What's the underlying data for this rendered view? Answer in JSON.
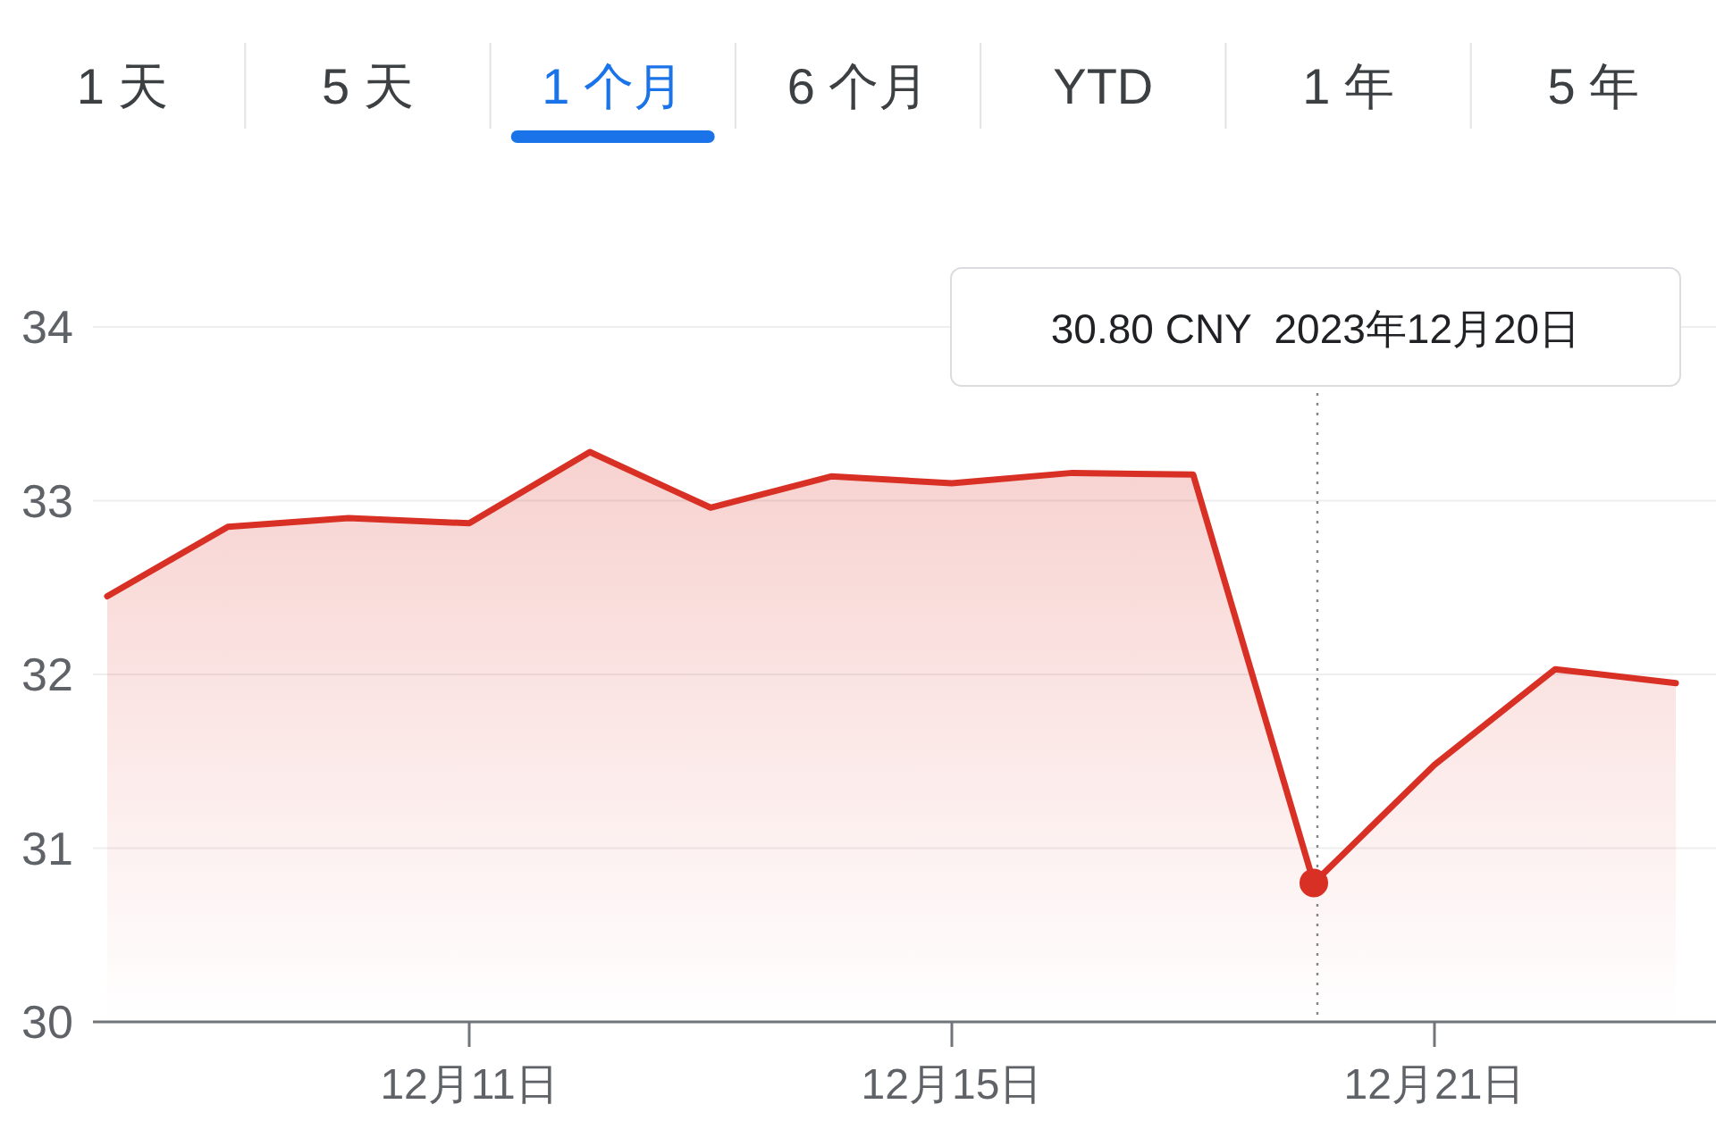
{
  "chart_data": {
    "type": "area",
    "categories": [
      null,
      null,
      null,
      "12月11日",
      null,
      null,
      null,
      "12月15日",
      null,
      null,
      null,
      "12月21日",
      null,
      null
    ],
    "series": [
      {
        "color": "#d93025",
        "values": [
          32.45,
          32.85,
          32.9,
          32.87,
          33.28,
          32.96,
          33.14,
          33.1,
          33.16,
          33.15,
          30.8,
          31.48,
          32.03,
          31.95
        ]
      }
    ],
    "ylim": [
      30,
      34
    ],
    "yticks": [
      30,
      31,
      32,
      33,
      34
    ],
    "grid": "y",
    "line_style": "solid",
    "annotations": [
      "1 天",
      "5 天",
      "1 个月",
      "6 个月",
      "YTD",
      "1 年",
      "5 年",
      "30.80 CNY  2023年12月20日"
    ]
  }
}
